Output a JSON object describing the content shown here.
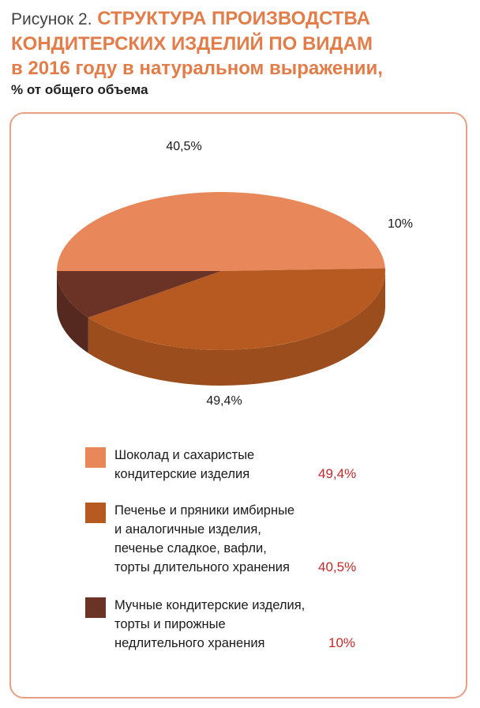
{
  "header": {
    "figure_label": "Рисунок 2.",
    "title_lines": [
      "СТРУКТУРА ПРОИЗВОДСТВА",
      "КОНДИТЕРСКИХ ИЗДЕЛИЙ ПО ВИДАМ",
      "в 2016 году в натуральном выражении,"
    ],
    "subtitle": "% от общего объема"
  },
  "chart_data": {
    "type": "pie",
    "title": "СТРУКТУРА ПРОИЗВОДСТВА КОНДИТЕРСКИХ ИЗДЕЛИЙ ПО ВИДАМ в 2016 году в натуральном выражении,",
    "subtitle": "% от общего объема",
    "three_d": true,
    "slices": [
      {
        "name_lines": [
          "Шоколад и сахаристые",
          "кондитерские изделия"
        ],
        "value": 49.4,
        "label": "49,4%",
        "color": "#e8875a",
        "side_color": "#d47a4f"
      },
      {
        "name_lines": [
          "Печенье и пряники имбирные",
          "и аналогичные изделия,",
          "печенье сладкое, вафли,",
          "торты длительного хранения"
        ],
        "value": 40.5,
        "label": "40,5%",
        "color": "#b65a22",
        "side_color": "#9c4d1d"
      },
      {
        "name_lines": [
          "Мучные кондитерские изделия,",
          "торты и пирожные",
          "недлительного хранения"
        ],
        "value": 10,
        "label": "10%",
        "color": "#6b3325",
        "side_color": "#552820"
      }
    ],
    "legend_placement": "bottom"
  }
}
